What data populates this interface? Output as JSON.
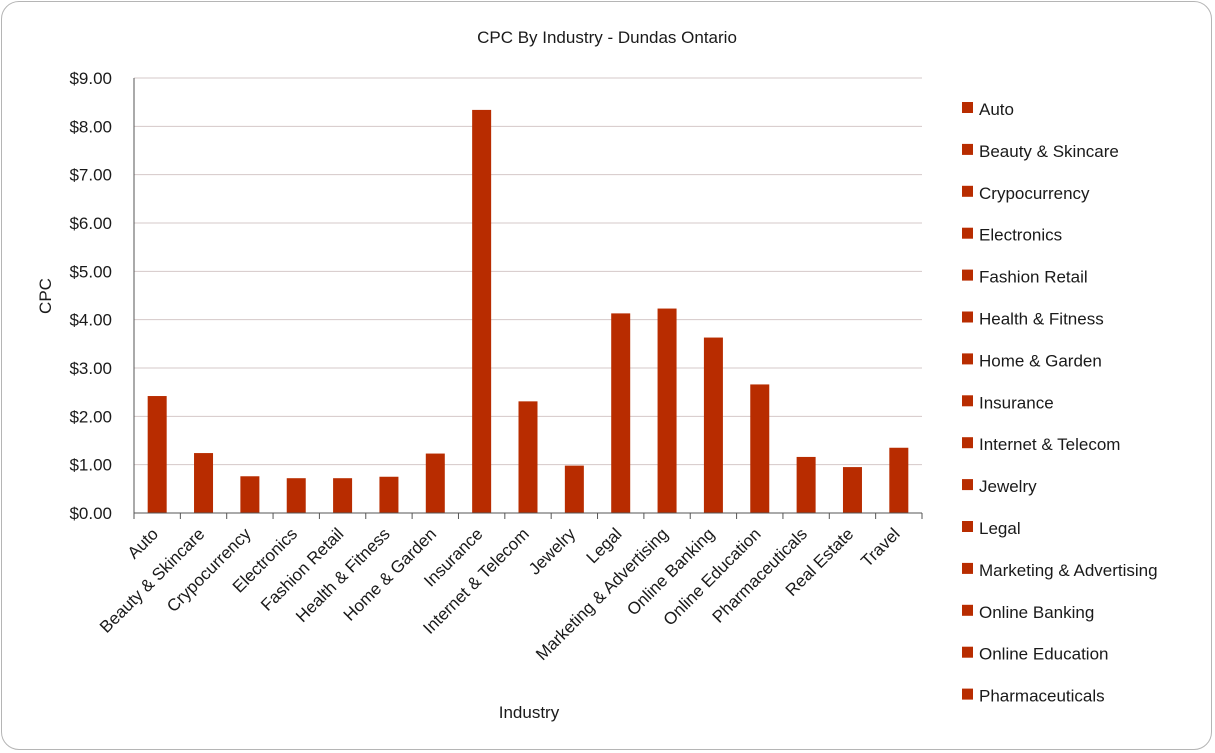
{
  "chart_data": {
    "type": "bar",
    "title": "CPC By Industry - Dundas Ontario",
    "xlabel": "Industry",
    "ylabel": "CPC",
    "ylim": [
      0,
      9
    ],
    "ytick_labels": [
      "$0.00",
      "$1.00",
      "$2.00",
      "$3.00",
      "$4.00",
      "$5.00",
      "$6.00",
      "$7.00",
      "$8.00",
      "$9.00"
    ],
    "grid": true,
    "legend_position": "right",
    "bar_color": "#b82c00",
    "categories": [
      "Auto",
      "Beauty & Skincare",
      "Crypocurrency",
      "Electronics",
      "Fashion Retail",
      "Health & Fitness",
      "Home & Garden",
      "Insurance",
      "Internet & Telecom",
      "Jewelry",
      "Legal",
      "Marketing & Advertising",
      "Online Banking",
      "Online Education",
      "Pharmaceuticals",
      "Real Estate",
      "Travel"
    ],
    "values": [
      2.42,
      1.24,
      0.76,
      0.72,
      0.72,
      0.75,
      1.23,
      8.34,
      2.31,
      0.98,
      4.13,
      4.23,
      3.63,
      2.66,
      1.16,
      0.95,
      1.35
    ],
    "legend_entries": [
      "Auto",
      "Beauty & Skincare",
      "Crypocurrency",
      "Electronics",
      "Fashion Retail",
      "Health & Fitness",
      "Home & Garden",
      "Insurance",
      "Internet & Telecom",
      "Jewelry",
      "Legal",
      "Marketing & Advertising",
      "Online Banking",
      "Online Education",
      "Pharmaceuticals"
    ]
  }
}
